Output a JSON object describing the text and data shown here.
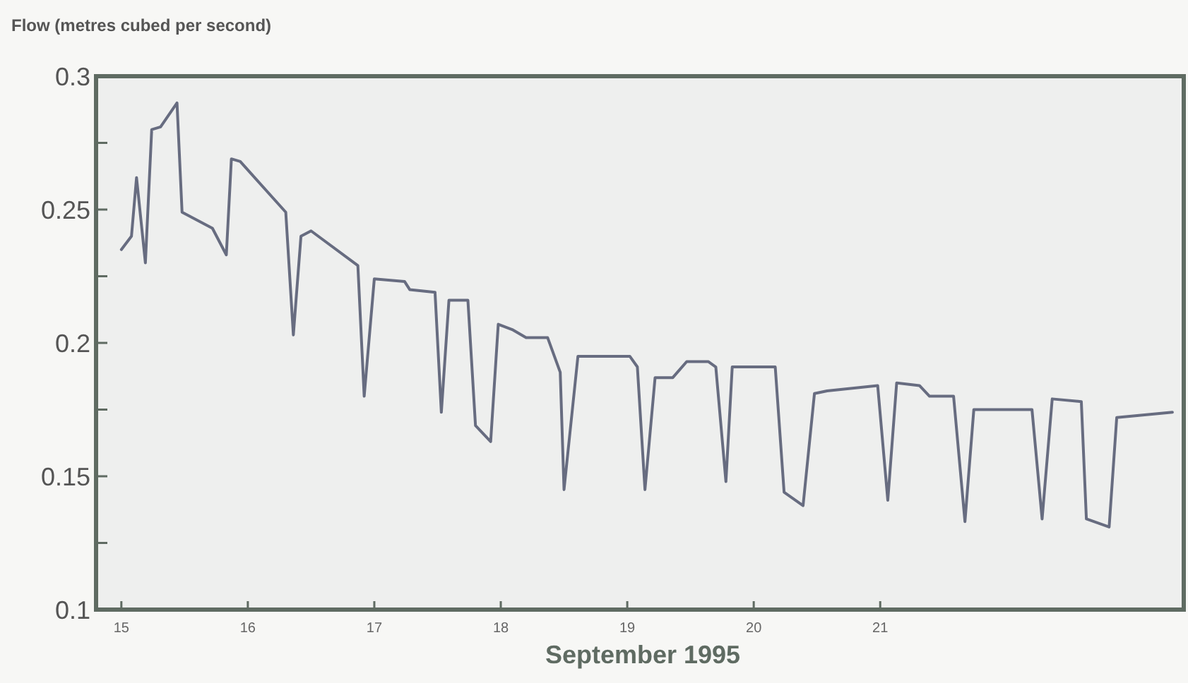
{
  "chart_data": {
    "type": "line",
    "ylabel": "Flow (metres cubed per second)",
    "xlabel": "September 1995",
    "xlim": [
      14.8,
      23.4
    ],
    "xticks": [
      15,
      16,
      17,
      18,
      19,
      20,
      21
    ],
    "ylim": [
      0.1,
      0.3
    ],
    "yticks": [
      0.1,
      {
        "value": 0.125,
        "label": null
      },
      0.15,
      {
        "value": 0.175,
        "label": null
      },
      0.2,
      {
        "value": 0.225,
        "label": null
      },
      0.25,
      {
        "value": 0.275,
        "label": null
      },
      0.3
    ],
    "grid": false,
    "series": [
      {
        "color": "#676c80",
        "x": [
          15.0,
          15.08,
          15.12,
          15.19,
          15.24,
          15.31,
          15.44,
          15.48,
          15.72,
          15.83,
          15.87,
          15.94,
          16.3,
          16.36,
          16.42,
          16.5,
          16.87,
          16.92,
          17.0,
          17.24,
          17.28,
          17.48,
          17.53,
          17.59,
          17.74,
          17.8,
          17.92,
          17.98,
          18.09,
          18.2,
          18.37,
          18.47,
          18.5,
          18.61,
          19.02,
          19.08,
          19.14,
          19.22,
          19.36,
          19.47,
          19.64,
          19.7,
          19.78,
          19.83,
          20.17,
          20.24,
          20.39,
          20.48,
          20.58,
          20.98,
          21.06,
          21.13,
          21.31,
          21.39,
          21.58,
          21.67,
          21.74,
          22.2,
          22.28,
          22.36,
          22.59,
          22.63,
          22.81,
          22.87,
          23.31
        ],
        "values": [
          0.235,
          0.24,
          0.262,
          0.23,
          0.28,
          0.281,
          0.29,
          0.249,
          0.243,
          0.233,
          0.269,
          0.268,
          0.249,
          0.203,
          0.24,
          0.242,
          0.229,
          0.18,
          0.224,
          0.223,
          0.22,
          0.219,
          0.174,
          0.216,
          0.216,
          0.169,
          0.163,
          0.207,
          0.205,
          0.202,
          0.202,
          0.189,
          0.145,
          0.195,
          0.195,
          0.191,
          0.145,
          0.187,
          0.187,
          0.193,
          0.193,
          0.191,
          0.148,
          0.191,
          0.191,
          0.144,
          0.139,
          0.181,
          0.182,
          0.184,
          0.141,
          0.185,
          0.184,
          0.18,
          0.18,
          0.133,
          0.175,
          0.175,
          0.134,
          0.179,
          0.178,
          0.134,
          0.131,
          0.172,
          0.174
        ]
      }
    ]
  }
}
